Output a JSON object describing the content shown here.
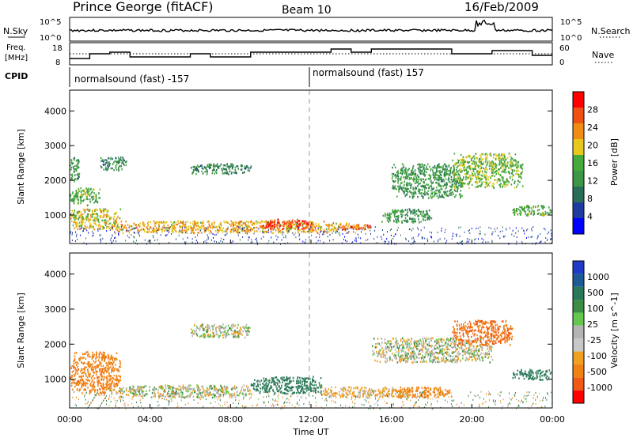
{
  "header": {
    "station": "Prince George (fitACF)",
    "beam": "Beam 10",
    "date": "16/Feb/2009"
  },
  "noise_panel": {
    "left_label": "N.Sky",
    "left_ticks": [
      "10^5",
      "10^0"
    ],
    "right_label": "N.Search",
    "right_ticks": [
      "10^5",
      "10^0"
    ]
  },
  "freq_panel": {
    "left_label_1": "Freq.",
    "left_label_2": "[MHz]",
    "left_ticks": [
      "18",
      "8"
    ],
    "right_label": "Nave",
    "right_ticks": [
      "60",
      "0"
    ]
  },
  "cpid": {
    "label": "CPID",
    "segments": [
      "normalsound (fast) -157",
      "normalsound (fast) 157"
    ]
  },
  "colors": {
    "power_scale": [
      "#0000ff",
      "#1e3ca0",
      "#2a6e5a",
      "#3c9646",
      "#46aa3c",
      "#e6c81e",
      "#f08c14",
      "#f05014",
      "#ff0000"
    ],
    "velocity_scale": [
      "#1e3cc8",
      "#1e5a96",
      "#2a785a",
      "#3c8c46",
      "#64c850",
      "#b4b4b4",
      "#c8c8c8",
      "#f0a01e",
      "#f08214",
      "#f05a14",
      "#ff0000"
    ],
    "ground_scatter": "#bebebe"
  },
  "chart_data": [
    {
      "type": "heatmap",
      "title": "",
      "xlabel": "Time UT",
      "ylabel": "Slant Range [km]",
      "x_ticks": [
        "00:00",
        "04:00",
        "08:00",
        "12:00",
        "16:00",
        "20:00",
        "00:00"
      ],
      "y_ticks": [
        "1000",
        "2000",
        "3000",
        "4000"
      ],
      "xlim": [
        0,
        24
      ],
      "ylim": [
        180,
        4600
      ],
      "colorbar": {
        "label": "Power [dB]",
        "ticks": [
          "4",
          "8",
          "12",
          "16",
          "20",
          "24",
          "28"
        ],
        "range": [
          0,
          30
        ]
      },
      "features": [
        {
          "t": [
            0.0,
            2.5
          ],
          "range": [
            600,
            1200
          ],
          "value": 18
        },
        {
          "t": [
            2.0,
            14.5
          ],
          "range": [
            500,
            850
          ],
          "value": 20
        },
        {
          "t": [
            9.5,
            12.0
          ],
          "range": [
            600,
            900
          ],
          "value": 26
        },
        {
          "t": [
            13.5,
            15.0
          ],
          "range": [
            600,
            750
          ],
          "value": 24
        },
        {
          "t": [
            0.0,
            1.5
          ],
          "range": [
            1300,
            1800
          ],
          "value": 14
        },
        {
          "t": [
            0.0,
            0.5
          ],
          "range": [
            2000,
            2700
          ],
          "value": 12
        },
        {
          "t": [
            1.5,
            2.8
          ],
          "range": [
            2300,
            2700
          ],
          "value": 10
        },
        {
          "t": [
            6.0,
            9.0
          ],
          "range": [
            2200,
            2500
          ],
          "value": 10
        },
        {
          "t": [
            15.5,
            18.0
          ],
          "range": [
            800,
            1200
          ],
          "value": 12
        },
        {
          "t": [
            16.0,
            19.5
          ],
          "range": [
            1500,
            2500
          ],
          "value": 12
        },
        {
          "t": [
            19.0,
            22.5
          ],
          "range": [
            1800,
            2800
          ],
          "value": 16
        },
        {
          "t": [
            22.0,
            24.0
          ],
          "range": [
            1000,
            1300
          ],
          "value": 14
        }
      ]
    },
    {
      "type": "heatmap",
      "title": "",
      "xlabel": "Time UT",
      "ylabel": "Slant Range [km]",
      "x_ticks": [
        "00:00",
        "04:00",
        "08:00",
        "12:00",
        "16:00",
        "20:00",
        "00:00"
      ],
      "y_ticks": [
        "1000",
        "2000",
        "3000",
        "4000"
      ],
      "xlim": [
        0,
        24
      ],
      "ylim": [
        180,
        4600
      ],
      "colorbar": {
        "label": "Velocity [m s^-1]",
        "ticks": [
          "1000",
          "500",
          "100",
          "25",
          "-25",
          "-100",
          "-500",
          "-1000"
        ],
        "range": [
          -1000,
          1000
        ]
      },
      "features": [
        {
          "t": [
            0.0,
            2.5
          ],
          "range": [
            600,
            1800
          ],
          "value": -200
        },
        {
          "t": [
            2.0,
            9.0
          ],
          "range": [
            500,
            850
          ],
          "value": 0
        },
        {
          "t": [
            9.0,
            12.5
          ],
          "range": [
            600,
            1100
          ],
          "value": 150
        },
        {
          "t": [
            12.5,
            17.0
          ],
          "range": [
            500,
            800
          ],
          "value": -50
        },
        {
          "t": [
            16.0,
            19.0
          ],
          "range": [
            500,
            800
          ],
          "value": -150
        },
        {
          "t": [
            6.0,
            9.0
          ],
          "range": [
            2200,
            2600
          ],
          "value": 0
        },
        {
          "t": [
            15.0,
            21.0
          ],
          "range": [
            1500,
            2200
          ],
          "value": 0
        },
        {
          "t": [
            19.0,
            22.0
          ],
          "range": [
            2000,
            2700
          ],
          "value": -250
        },
        {
          "t": [
            22.0,
            24.0
          ],
          "range": [
            1000,
            1300
          ],
          "value": 150
        }
      ]
    }
  ]
}
